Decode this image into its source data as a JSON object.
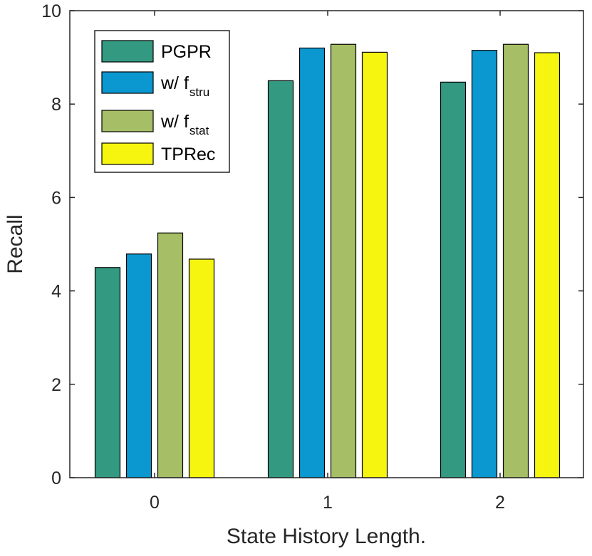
{
  "chart_data": {
    "type": "bar",
    "categories": [
      "0",
      "1",
      "2"
    ],
    "series": [
      {
        "name": "PGPR",
        "name_main": "PGPR",
        "name_sub": "",
        "values": [
          4.5,
          8.5,
          8.47
        ],
        "color": "#339980"
      },
      {
        "name": "w/ f_stru",
        "name_main": "w/ f",
        "name_sub": "stru",
        "values": [
          4.79,
          9.2,
          9.15
        ],
        "color": "#0b98d0"
      },
      {
        "name": "w/ f_stat",
        "name_main": "w/ f",
        "name_sub": "stat",
        "values": [
          5.24,
          9.28,
          9.28
        ],
        "color": "#a6bf66"
      },
      {
        "name": "TPRec",
        "name_main": "TPRec",
        "name_sub": "",
        "values": [
          4.68,
          9.11,
          9.1
        ],
        "color": "#f5f510"
      }
    ],
    "xlabel": "State History Length.",
    "ylabel": "Recall",
    "ylim": [
      0,
      10
    ],
    "yticks": [
      "0",
      "2",
      "4",
      "6",
      "8",
      "10"
    ],
    "grid": false,
    "legend_position": "top-left"
  }
}
